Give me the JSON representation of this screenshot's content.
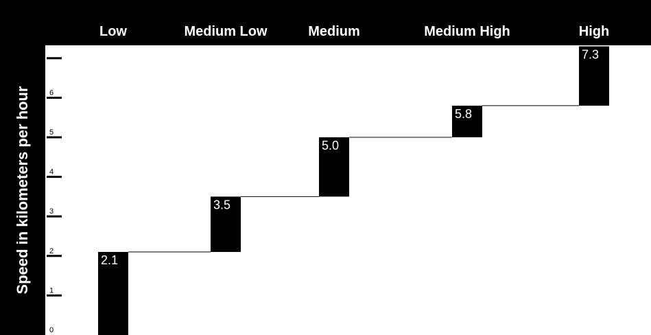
{
  "chart_data": {
    "type": "bar",
    "subtype": "waterfall",
    "title": "",
    "xlabel": "",
    "ylabel": "Speed in kilometers per hour",
    "categories": [
      "Low",
      "Medium Low",
      "Medium",
      "Medium High",
      "High"
    ],
    "values": [
      2.1,
      3.5,
      5.0,
      5.8,
      7.3
    ],
    "data_labels": [
      "2.1",
      "3.5",
      "5.0",
      "5.8",
      "7.3"
    ],
    "ylim": [
      0,
      7.3
    ],
    "yticks": [
      0,
      1,
      2,
      3,
      4,
      5,
      6,
      7
    ],
    "ytick_labels": [
      "0",
      "1",
      "2",
      "3",
      "4",
      "5",
      "6",
      ""
    ],
    "grid": false,
    "legend": "none",
    "colors": {
      "bars": "#000000",
      "background": "#ffffff",
      "header": "#000000",
      "header_text": "#ffffff",
      "label_text": "#ffffff"
    }
  }
}
